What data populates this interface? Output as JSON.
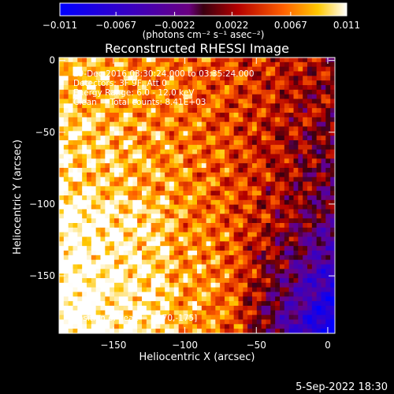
{
  "footer_date": "5-Sep-2022 18:30",
  "colorbar": {
    "ticks": [
      -0.011,
      -0.0067,
      -0.0022,
      0.0022,
      0.0067,
      0.011
    ],
    "tick_labels": [
      "−0.011",
      "−0.0067",
      "−0.0022",
      "0.0022",
      "0.0067",
      "0.011"
    ],
    "units": "(photons cm⁻² s⁻¹ asec⁻²)",
    "range": [
      -0.011,
      0.011
    ]
  },
  "chart_data": {
    "type": "heatmap",
    "title": "Reconstructed RHESSI Image",
    "xlabel": "Heliocentric X (arcsec)",
    "ylabel": "Heliocentric Y (arcsec)",
    "xlim": [
      -188,
      5
    ],
    "ylim": [
      -190,
      2
    ],
    "xticks": [
      -150,
      -100,
      -50,
      0
    ],
    "yticks": [
      0,
      -50,
      -100,
      -150
    ],
    "xtick_labels": [
      "−150",
      "−100",
      "−50",
      "0"
    ],
    "ytick_labels": [
      "0",
      "−50",
      "−100",
      "−150"
    ],
    "grid": false,
    "peak": [
      -170,
      -175
    ],
    "annotations": [
      "29-Dec-2016 03:30:24.000 to 03:35:24.000",
      "Detectors: 3F 9F, Att 0",
      "Energy Range: 6.0 - 12.0 keV",
      "Clean     Total counts: 8.41E+03"
    ],
    "peak_label": "Position of Peak = [-170,-175]"
  }
}
